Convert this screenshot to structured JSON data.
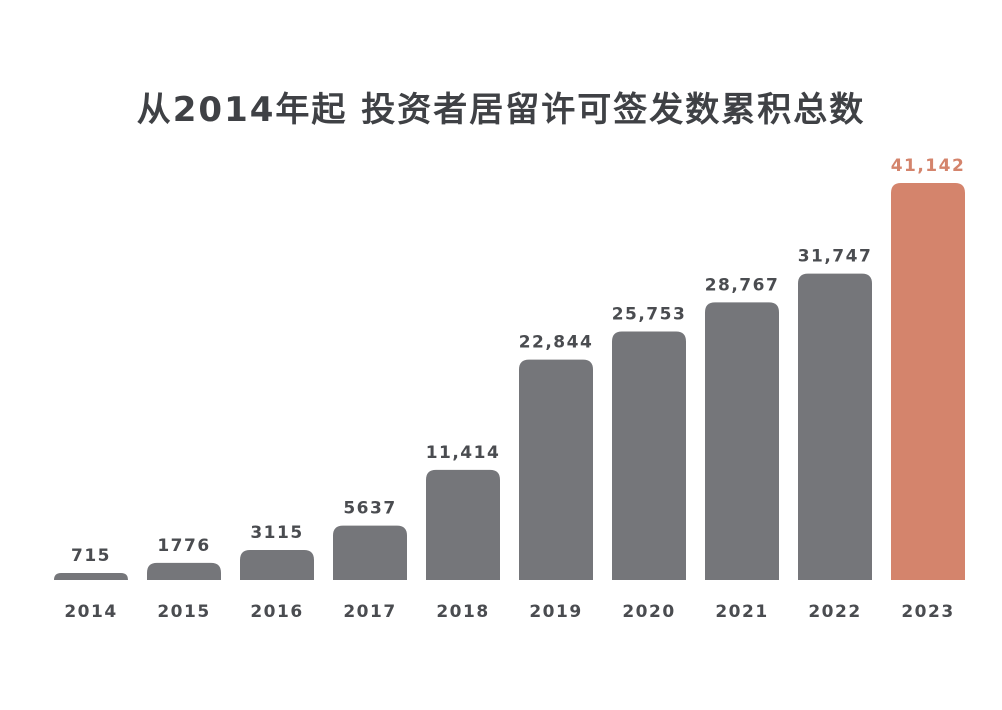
{
  "chart_data": {
    "type": "bar",
    "title": "从2014年起 投资者居留许可签发数累积总数",
    "xlabel": "",
    "ylabel": "",
    "categories": [
      "2014",
      "2015",
      "2016",
      "2017",
      "2018",
      "2019",
      "2020",
      "2021",
      "2022",
      "2023"
    ],
    "values": [
      715,
      1776,
      3115,
      5637,
      11414,
      22844,
      25753,
      28767,
      31747,
      41142
    ],
    "value_labels": [
      "715",
      "1776",
      "3115",
      "5637",
      "11,414",
      "22,844",
      "25,753",
      "28,767",
      "31,747",
      "41,142"
    ],
    "ylim": [
      0,
      41142
    ],
    "grid": false,
    "legend": "none",
    "highlight_category": "2023",
    "colors": {
      "bar": "#75767a",
      "highlight": "#d4846c",
      "label": "#4a4c50",
      "highlight_label": "#d4846c",
      "tick": "#4a4c50",
      "title": "#3f4145"
    }
  }
}
